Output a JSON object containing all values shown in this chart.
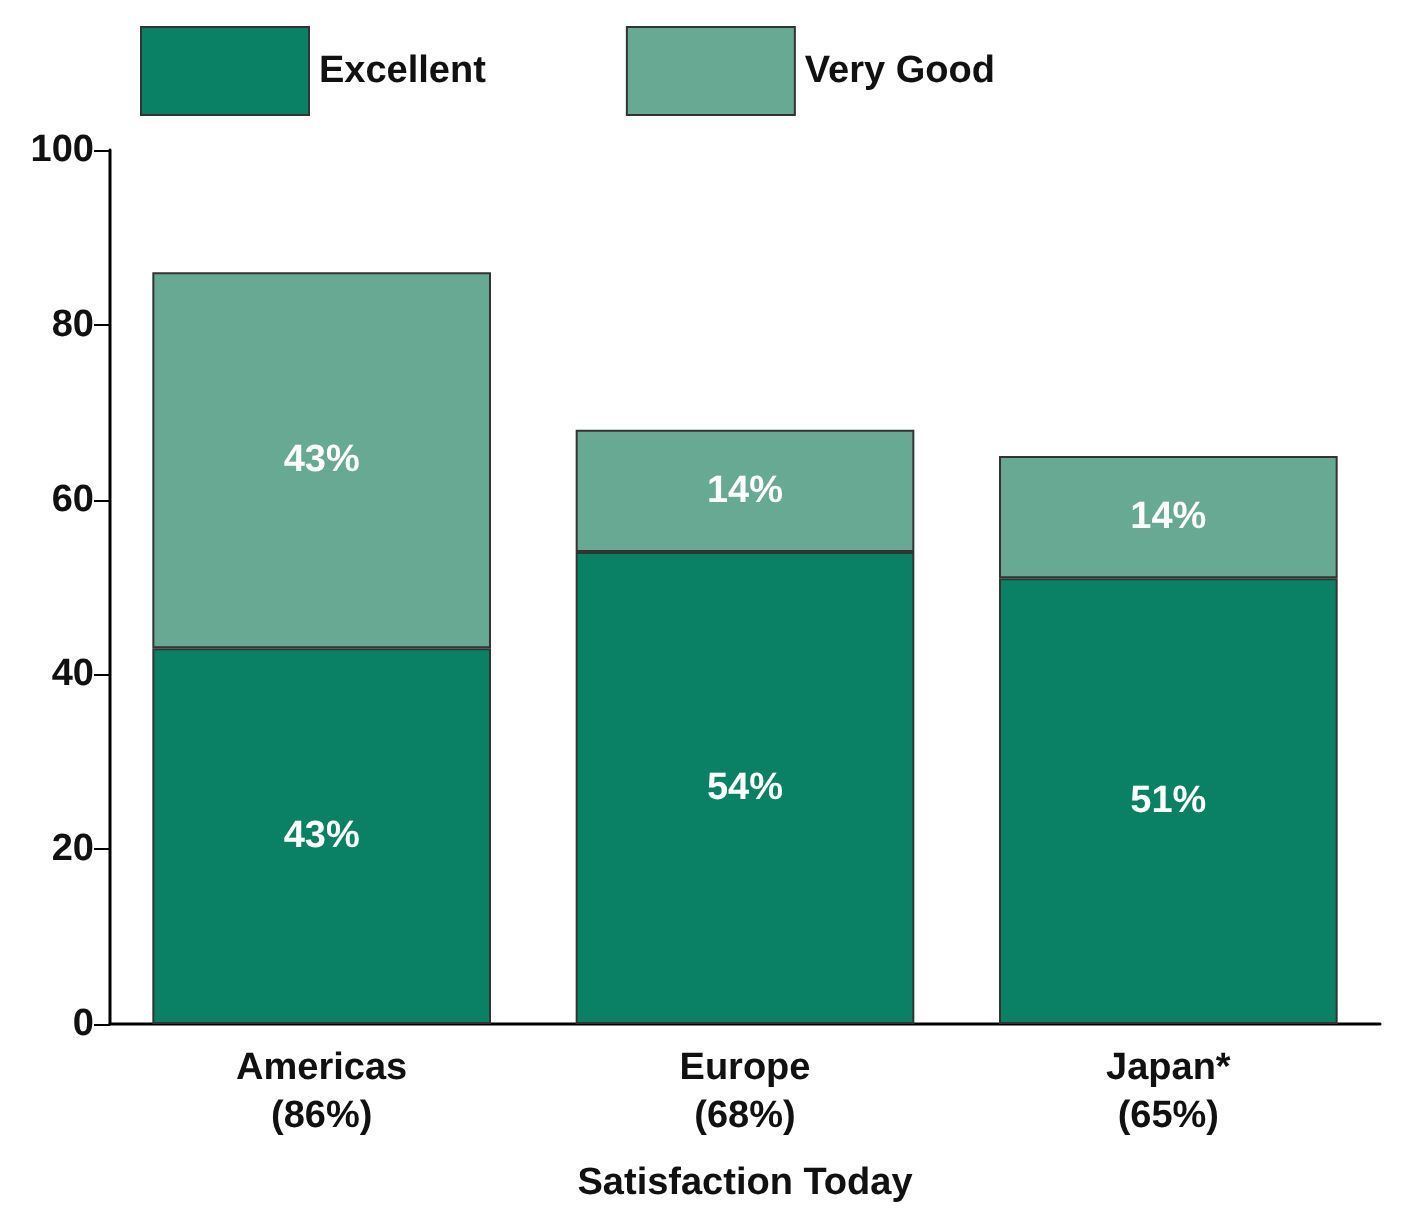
{
  "chart_data": {
    "type": "bar",
    "stacked": true,
    "xlabel": "Satisfaction Today",
    "categories": [
      "Americas\n(86%)",
      "Europe\n(68%)",
      "Japan*\n(65%)"
    ],
    "series": [
      {
        "name": "Excellent",
        "color": "#0a8064",
        "values": [
          43,
          54,
          51
        ],
        "value_labels": [
          "43%",
          "54%",
          "51%"
        ]
      },
      {
        "name": "Very Good",
        "color": "#67a993",
        "values": [
          43,
          14,
          14
        ],
        "value_labels": [
          "43%",
          "14%",
          "14%"
        ]
      }
    ],
    "ylim": [
      0,
      100
    ],
    "yticks": [
      0,
      20,
      40,
      60,
      80,
      100
    ],
    "grid": false,
    "legend": "top left"
  }
}
